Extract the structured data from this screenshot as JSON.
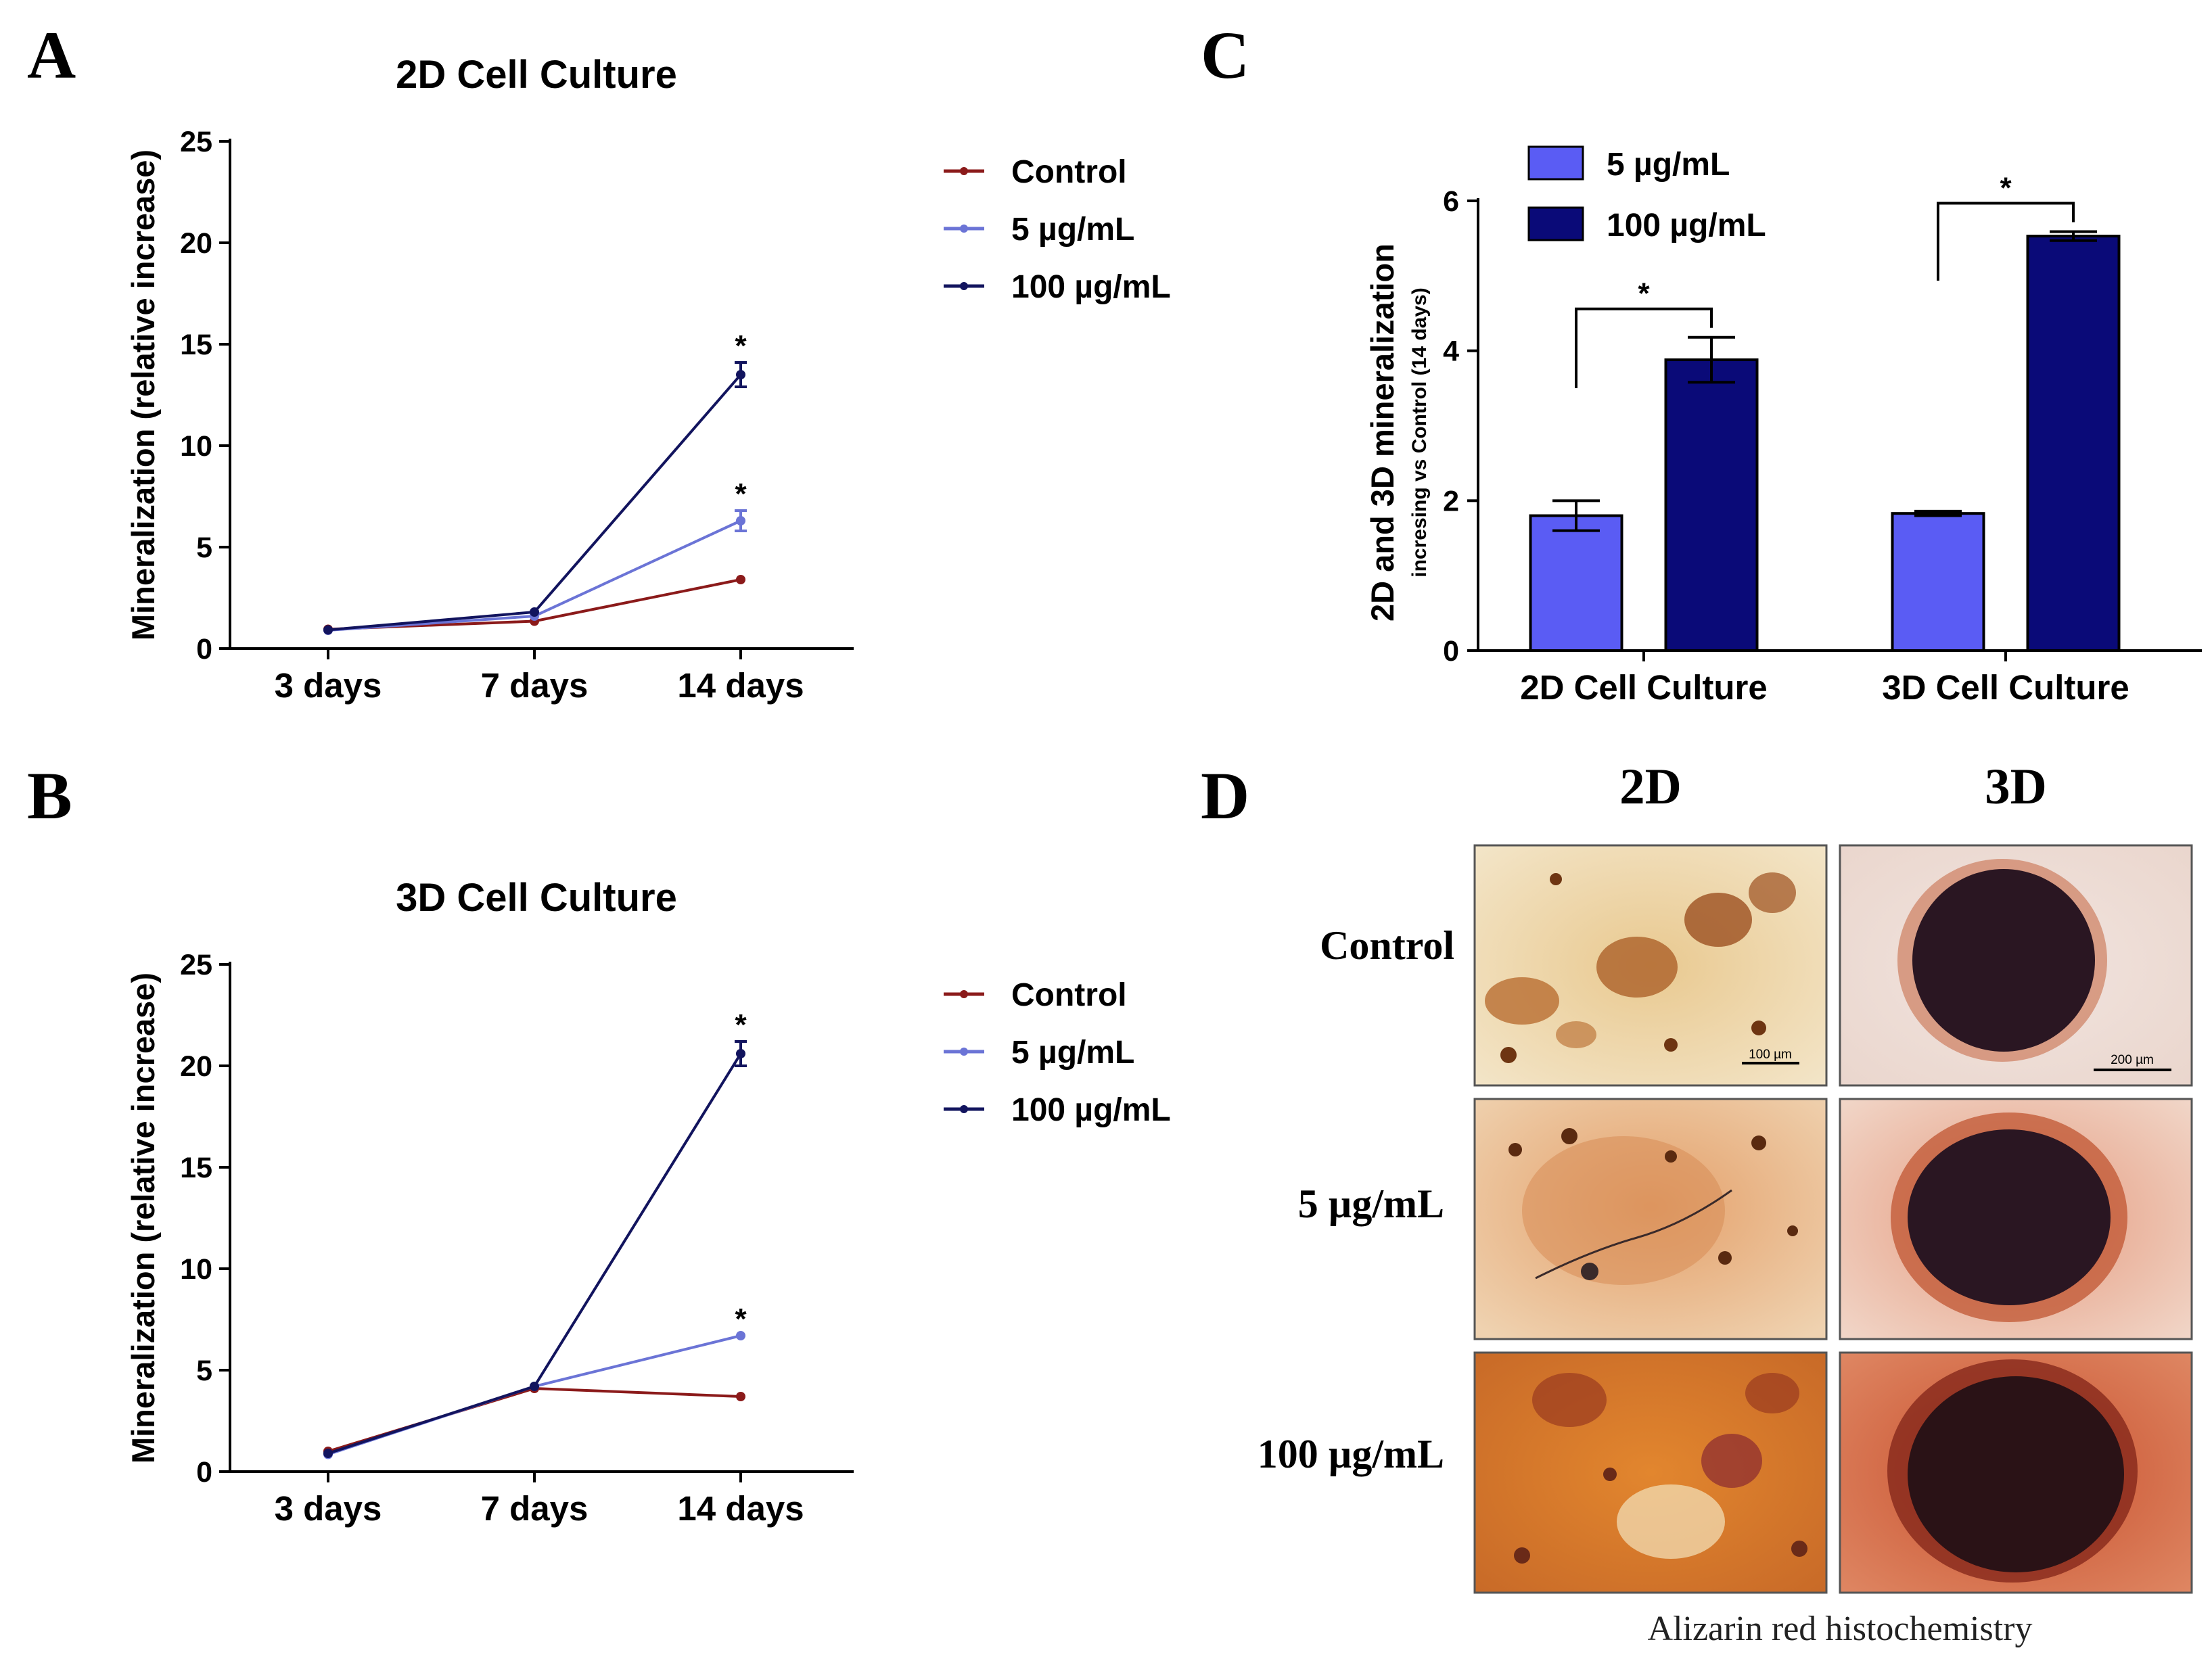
{
  "panel_labels": {
    "a": "A",
    "b": "B",
    "c": "C",
    "d": "D"
  },
  "colors": {
    "control": "#8b1a1a",
    "low": "#6b74d6",
    "high": "#12145e",
    "bar_low": "#5a5cf4",
    "bar_high": "#0a0a78"
  },
  "chart_data": [
    {
      "panel": "A",
      "type": "line",
      "title": "2D Cell Culture",
      "ylabel": "Mineralization (relative increase)",
      "xlabel": "",
      "categories": [
        "3 days",
        "7 days",
        "14 days"
      ],
      "ylim": [
        0,
        25
      ],
      "yticks": [
        "0",
        "5",
        "10",
        "15",
        "20",
        "25"
      ],
      "grid": false,
      "legend_position": "right",
      "series": [
        {
          "name": "Control",
          "values": [
            0.95,
            1.35,
            3.4
          ],
          "errors": [
            0,
            0,
            0
          ]
        },
        {
          "name": "5 µg/mL",
          "values": [
            0.9,
            1.6,
            6.3
          ],
          "errors": [
            0,
            0,
            0.5
          ],
          "star": "*"
        },
        {
          "name": "100 µg/mL",
          "values": [
            0.92,
            1.8,
            13.5
          ],
          "errors": [
            0,
            0,
            0.6
          ],
          "star": "*"
        }
      ]
    },
    {
      "panel": "B",
      "type": "line",
      "title": "3D Cell Culture",
      "ylabel": "Mineralization (relative increase)",
      "xlabel": "",
      "categories": [
        "3 days",
        "7 days",
        "14 days"
      ],
      "ylim": [
        0,
        25
      ],
      "yticks": [
        "0",
        "5",
        "10",
        "15",
        "20",
        "25"
      ],
      "grid": false,
      "legend_position": "right",
      "series": [
        {
          "name": "Control",
          "values": [
            1.0,
            4.1,
            3.7
          ],
          "errors": [
            0,
            0,
            0
          ]
        },
        {
          "name": "5 µg/mL",
          "values": [
            0.85,
            4.2,
            6.7
          ],
          "errors": [
            0,
            0,
            0
          ],
          "star": "*"
        },
        {
          "name": "100 µg/mL",
          "values": [
            0.9,
            4.2,
            20.6
          ],
          "errors": [
            0,
            0,
            0.6
          ],
          "star": "*"
        }
      ]
    },
    {
      "panel": "C",
      "type": "bar",
      "ylabel": "2D and 3D mineralization",
      "ylabel_sub": "incresing vs Control (14 days)",
      "xlabel": "",
      "categories": [
        "2D Cell Culture",
        "3D Cell Culture"
      ],
      "ylim": [
        0,
        6
      ],
      "yticks": [
        "0",
        "2",
        "4",
        "6"
      ],
      "grid": false,
      "legend_position": "top-left",
      "series": [
        {
          "name": "5 µg/mL",
          "values": [
            1.8,
            1.83
          ],
          "errors": [
            0.2,
            0.03
          ]
        },
        {
          "name": "100 µg/mL",
          "values": [
            3.88,
            5.53
          ],
          "errors": [
            0.3,
            0.06
          ]
        }
      ],
      "significance": [
        "*",
        "*"
      ]
    }
  ],
  "panel_d": {
    "col_headers": [
      "2D",
      "3D"
    ],
    "row_labels": [
      "Control",
      "5 µg/mL",
      "100 µg/mL"
    ],
    "scale_bars": [
      "100 µm",
      "200 µm"
    ],
    "caption": "Alizarin red histochemistry"
  }
}
